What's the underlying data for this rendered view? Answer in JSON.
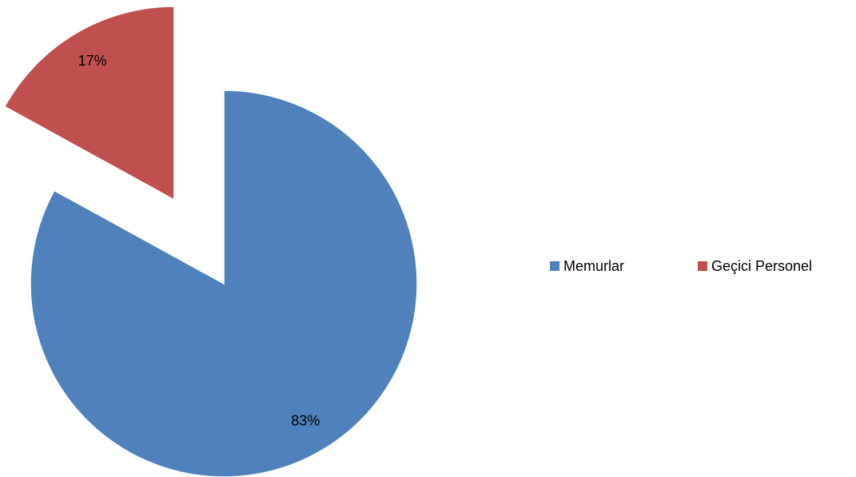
{
  "chart_data": {
    "type": "pie",
    "categories": [
      "Memurlar",
      "Geçici Personel"
    ],
    "values": [
      83,
      17
    ],
    "value_labels": [
      "83%",
      "17%"
    ],
    "colors": [
      "#4f81bd",
      "#c0504d"
    ],
    "exploded": [
      false,
      true
    ],
    "legend": "right"
  }
}
